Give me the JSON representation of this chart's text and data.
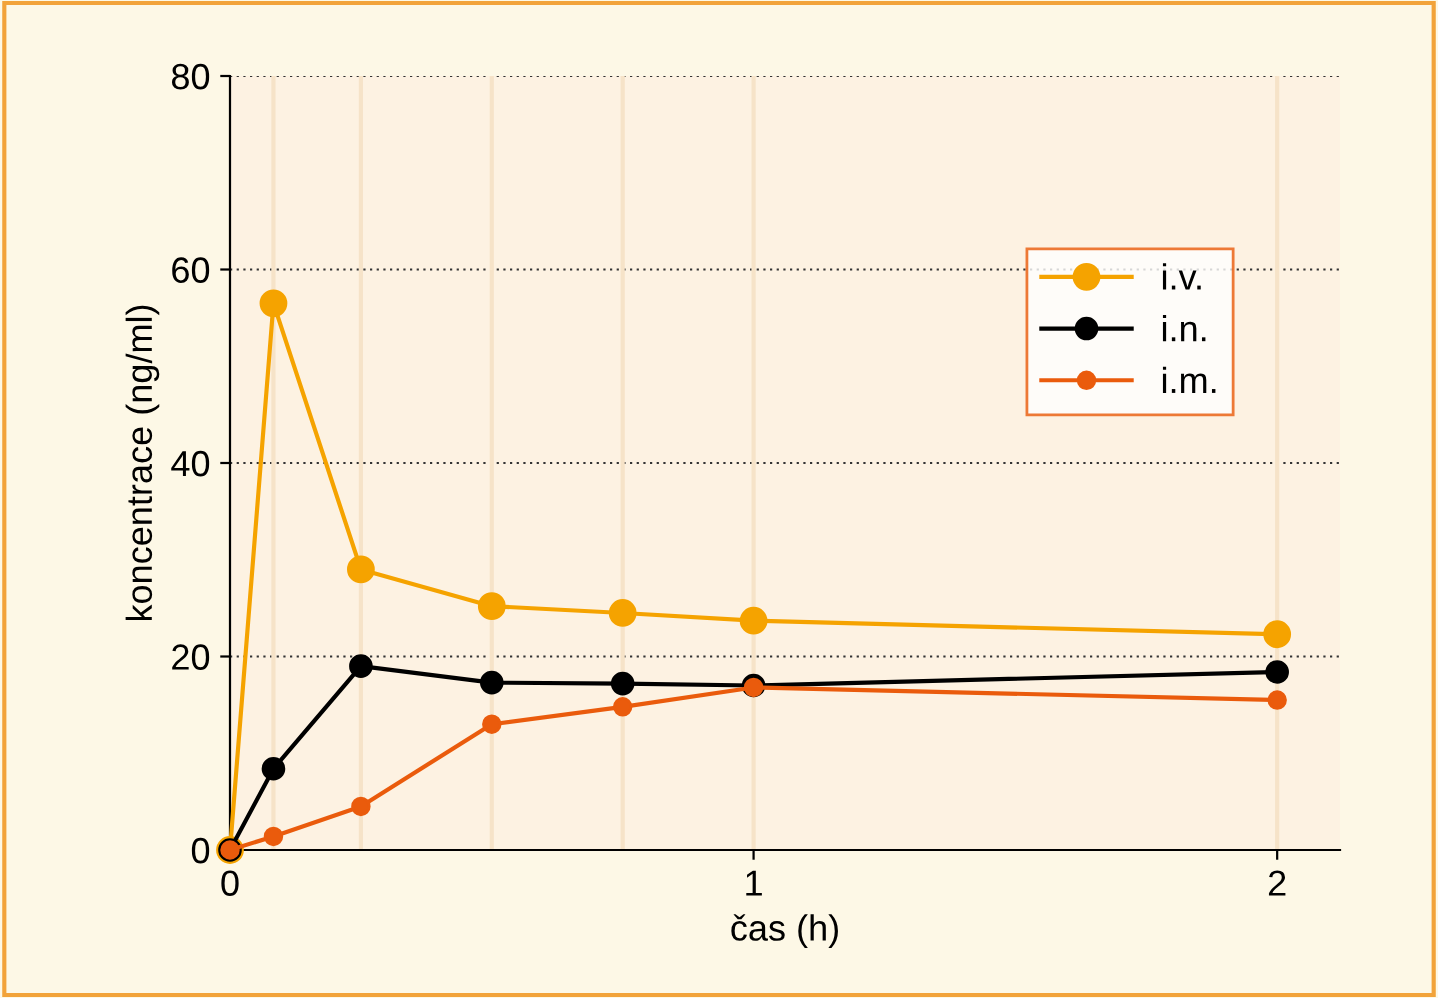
{
  "chart_data": {
    "type": "line",
    "xlabel": "čas (h)",
    "ylabel": "koncentrace (ng/ml)",
    "x": [
      0,
      0.083,
      0.25,
      0.5,
      0.75,
      1,
      2
    ],
    "series": [
      {
        "name": "i.v.",
        "color": "#f5a300",
        "values": [
          0,
          56.5,
          29,
          25.2,
          24.5,
          23.7,
          22.3
        ]
      },
      {
        "name": "i.n.",
        "color": "#000000",
        "values": [
          0,
          8.4,
          19,
          17.3,
          17.2,
          17,
          18.4
        ]
      },
      {
        "name": "i.m.",
        "color": "#ea5b0c",
        "values": [
          0,
          1.4,
          4.5,
          13,
          14.8,
          16.8,
          15.5
        ]
      }
    ],
    "xlim": [
      0,
      2.12
    ],
    "xticks": [
      0,
      1,
      2
    ],
    "ylim": [
      0,
      80
    ],
    "yticks": [
      0,
      20,
      40,
      60,
      80
    ],
    "ref_lines": [
      {
        "axis": "x",
        "value": 0.083,
        "color": "#f6e3c8"
      },
      {
        "axis": "x",
        "value": 0.25,
        "color": "#f6e3c8"
      },
      {
        "axis": "x",
        "value": 0.5,
        "color": "#f6e3c8"
      },
      {
        "axis": "x",
        "value": 0.75,
        "color": "#f6e3c8"
      },
      {
        "axis": "x",
        "value": 1,
        "color": "#f6e3c8"
      },
      {
        "axis": "x",
        "value": 2,
        "color": "#f6e3c8"
      }
    ],
    "grid": "y",
    "legend": "top right",
    "marker": "circle",
    "line_style": "solid"
  }
}
